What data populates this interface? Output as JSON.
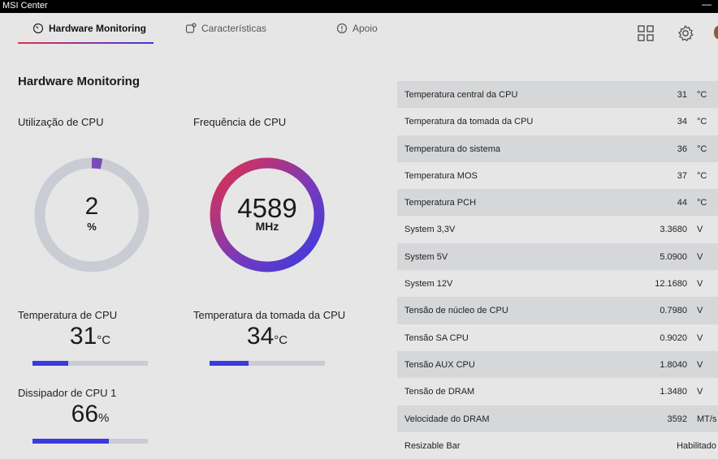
{
  "window": {
    "title": "MSI Center",
    "minimize_label": "—"
  },
  "tabs": [
    {
      "label": "Hardware Monitoring",
      "icon": "gauge-icon"
    },
    {
      "label": "Características",
      "icon": "features-icon"
    },
    {
      "label": "Apoio",
      "icon": "support-icon"
    }
  ],
  "page_title": "Hardware Monitoring",
  "cpu_usage": {
    "label": "Utilização de CPU",
    "value": "2",
    "unit": "%",
    "fraction": 0.02
  },
  "cpu_freq": {
    "label": "Frequência de CPU",
    "value": "4589",
    "unit": "MHz"
  },
  "cpu_temp": {
    "label": "Temperatura de CPU",
    "value": "31",
    "unit": "°C",
    "fraction": 0.31
  },
  "socket_temp": {
    "label": "Temperatura da tomada da CPU",
    "value": "34",
    "unit": "°C",
    "fraction": 0.34
  },
  "cooler": {
    "label": "Dissipador de CPU 1",
    "value": "66",
    "unit": "%",
    "fraction": 0.66
  },
  "colors": {
    "accent_blue": "#3a3ae0",
    "accent_red": "#e2304a",
    "ring_bg": "#c9ccd3",
    "usage_fill": "#7a4ab8"
  },
  "sensors": [
    {
      "name": "Temperatura central da CPU",
      "value": "31",
      "unit": "°C"
    },
    {
      "name": "Temperatura da tomada da CPU",
      "value": "34",
      "unit": "°C"
    },
    {
      "name": "Temperatura do sistema",
      "value": "36",
      "unit": "°C"
    },
    {
      "name": "Temperatura MOS",
      "value": "37",
      "unit": "°C"
    },
    {
      "name": "Temperatura PCH",
      "value": "44",
      "unit": "°C"
    },
    {
      "name": "System 3,3V",
      "value": "3.3680",
      "unit": "V"
    },
    {
      "name": "System 5V",
      "value": "5.0900",
      "unit": "V"
    },
    {
      "name": "System 12V",
      "value": "12.1680",
      "unit": "V"
    },
    {
      "name": "Tensão de núcleo de CPU",
      "value": "0.7980",
      "unit": "V"
    },
    {
      "name": "Tensão SA CPU",
      "value": "0.9020",
      "unit": "V"
    },
    {
      "name": "Tensão AUX CPU",
      "value": "1.8040",
      "unit": "V"
    },
    {
      "name": "Tensão de DRAM",
      "value": "1.3480",
      "unit": "V"
    },
    {
      "name": "Velocidade do DRAM",
      "value": "3592",
      "unit": "MT/s"
    },
    {
      "name": "Resizable Bar",
      "value": "Habilitado",
      "unit": ""
    }
  ]
}
